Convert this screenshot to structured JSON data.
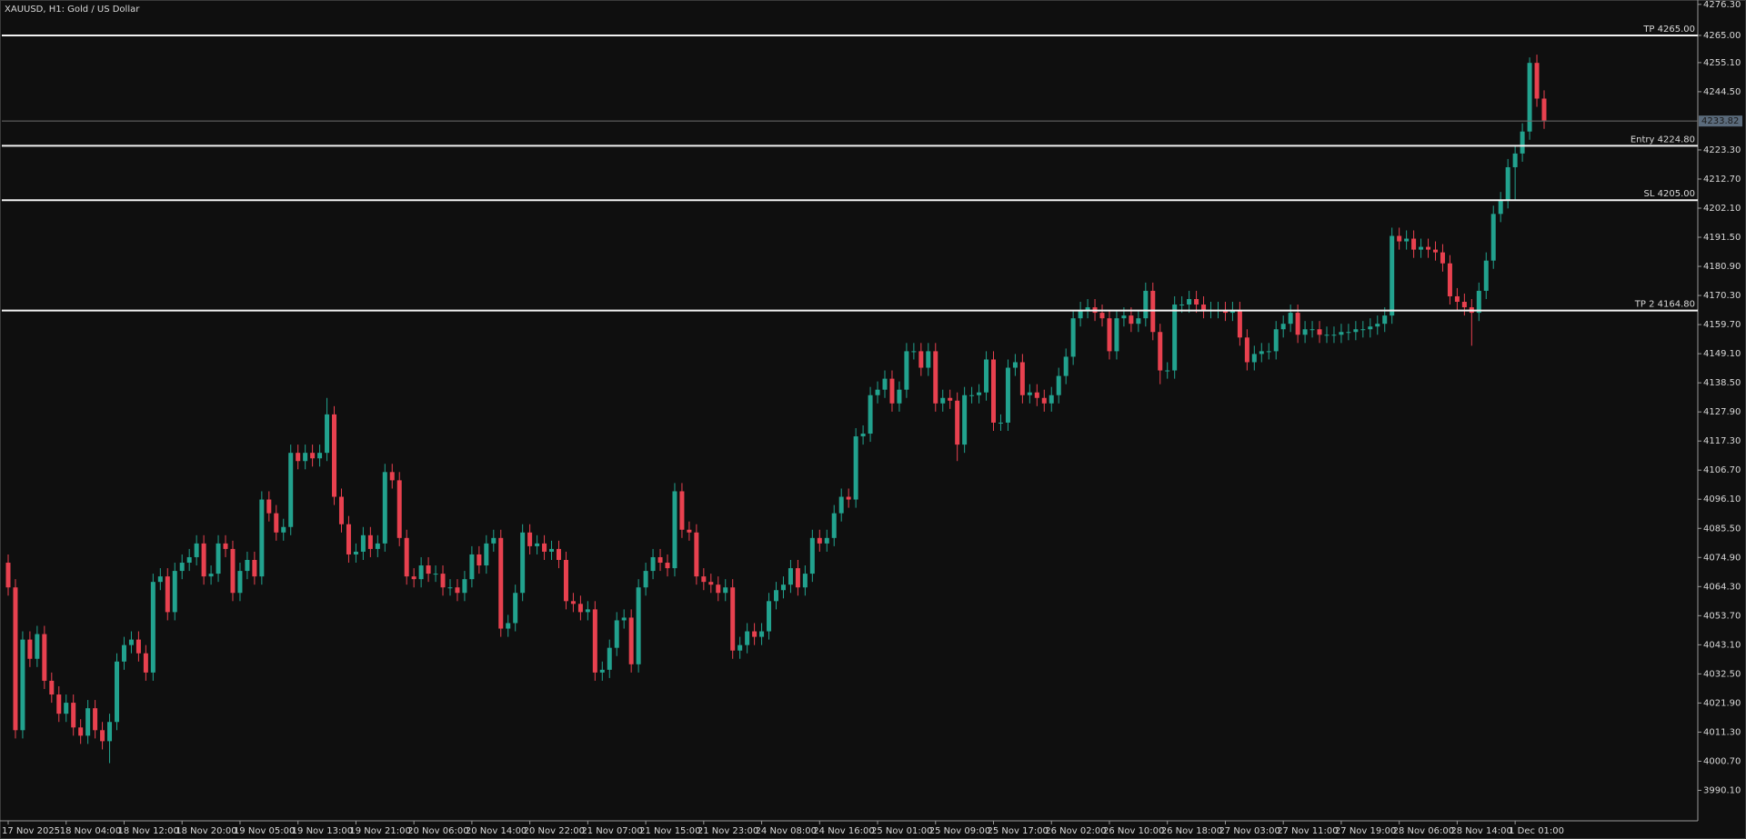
{
  "chart_data": {
    "type": "candlestick",
    "title": "XAUUSD, H1:  Gold / US Dollar",
    "up_color": "#22a28e",
    "down_color": "#e8414f",
    "level_color": "#f2f2f2",
    "current_color": "#6d6d6d",
    "ylim": [
      3979,
      4277.9
    ],
    "yticks": [
      {
        "value": 4276.3,
        "label": "4276.30"
      },
      {
        "value": 4265,
        "label": "4265.00"
      },
      {
        "value": 4255.1,
        "label": "4255.10"
      },
      {
        "value": 4244.5,
        "label": "4244.50"
      },
      {
        "value": 4223.3,
        "label": "4223.30"
      },
      {
        "value": 4212.7,
        "label": "4212.70"
      },
      {
        "value": 4202.1,
        "label": "4202.10"
      },
      {
        "value": 4191.5,
        "label": "4191.50"
      },
      {
        "value": 4180.9,
        "label": "4180.90"
      },
      {
        "value": 4170.3,
        "label": "4170.30"
      },
      {
        "value": 4159.7,
        "label": "4159.70"
      },
      {
        "value": 4149.1,
        "label": "4149.10"
      },
      {
        "value": 4138.5,
        "label": "4138.50"
      },
      {
        "value": 4127.9,
        "label": "4127.90"
      },
      {
        "value": 4117.3,
        "label": "4117.30"
      },
      {
        "value": 4106.7,
        "label": "4106.70"
      },
      {
        "value": 4096.1,
        "label": "4096.10"
      },
      {
        "value": 4085.5,
        "label": "4085.50"
      },
      {
        "value": 4074.9,
        "label": "4074.90"
      },
      {
        "value": 4064.3,
        "label": "4064.30"
      },
      {
        "value": 4053.7,
        "label": "4053.70"
      },
      {
        "value": 4043.1,
        "label": "4043.10"
      },
      {
        "value": 4032.5,
        "label": "4032.50"
      },
      {
        "value": 4021.9,
        "label": "4021.90"
      },
      {
        "value": 4011.3,
        "label": "4011.30"
      },
      {
        "value": 4000.7,
        "label": "4000.70"
      },
      {
        "value": 3990.1,
        "label": "3990.10"
      }
    ],
    "current_price": 4233.82,
    "levels": [
      {
        "label": "TP 4265.00",
        "value": 4265
      },
      {
        "label": "Entry 4224.80",
        "value": 4224.8
      },
      {
        "label": "SL 4205.00",
        "value": 4205
      },
      {
        "label": "TP 2 4164.80",
        "value": 4164.8
      }
    ],
    "categories": [
      "17 Nov 2025",
      null,
      null,
      null,
      null,
      null,
      null,
      null,
      "18 Nov 04:00",
      null,
      null,
      null,
      null,
      null,
      null,
      null,
      "18 Nov 12:00",
      null,
      null,
      null,
      null,
      null,
      null,
      null,
      "18 Nov 20:00",
      null,
      null,
      null,
      null,
      null,
      null,
      null,
      "19 Nov 05:00",
      null,
      null,
      null,
      null,
      null,
      null,
      null,
      "19 Nov 13:00",
      null,
      null,
      null,
      null,
      null,
      null,
      null,
      "19 Nov 21:00",
      null,
      null,
      null,
      null,
      null,
      null,
      null,
      "20 Nov 06:00",
      null,
      null,
      null,
      null,
      null,
      null,
      null,
      "20 Nov 14:00",
      null,
      null,
      null,
      null,
      null,
      null,
      null,
      "20 Nov 22:00",
      null,
      null,
      null,
      null,
      null,
      null,
      null,
      "21 Nov 07:00",
      null,
      null,
      null,
      null,
      null,
      null,
      null,
      "21 Nov 15:00",
      null,
      null,
      null,
      null,
      null,
      null,
      null,
      "21 Nov 23:00",
      null,
      null,
      null,
      null,
      null,
      null,
      null,
      "24 Nov 08:00",
      null,
      null,
      null,
      null,
      null,
      null,
      null,
      "24 Nov 16:00",
      null,
      null,
      null,
      null,
      null,
      null,
      null,
      "25 Nov 01:00",
      null,
      null,
      null,
      null,
      null,
      null,
      null,
      "25 Nov 09:00",
      null,
      null,
      null,
      null,
      null,
      null,
      null,
      "25 Nov 17:00",
      null,
      null,
      null,
      null,
      null,
      null,
      null,
      "26 Nov 02:00",
      null,
      null,
      null,
      null,
      null,
      null,
      null,
      "26 Nov 10:00",
      null,
      null,
      null,
      null,
      null,
      null,
      null,
      "26 Nov 18:00",
      null,
      null,
      null,
      null,
      null,
      null,
      null,
      "27 Nov 03:00",
      null,
      null,
      null,
      null,
      null,
      null,
      null,
      "27 Nov 11:00",
      null,
      null,
      null,
      null,
      null,
      null,
      null,
      "27 Nov 19:00",
      null,
      null,
      null,
      null,
      null,
      null,
      null,
      "28 Nov 06:00",
      null,
      null,
      null,
      null,
      null,
      null,
      null,
      "28 Nov 14:00",
      null,
      null,
      null,
      null,
      null,
      null,
      null,
      "1 Dec 01:00",
      null,
      null,
      null,
      null
    ],
    "open": [
      4073,
      4064,
      4012,
      4045,
      4038,
      4047,
      4030,
      4025,
      4018,
      4022,
      4013,
      4010,
      4020,
      4012,
      4008,
      4015,
      4037,
      4043,
      4045,
      4040,
      4033,
      4066,
      4068,
      4055,
      4070,
      4073,
      4075,
      4080,
      4068,
      4069,
      4080,
      4078,
      4062,
      4070,
      4074,
      4068,
      4096,
      4091,
      4084,
      4086,
      4113,
      4110,
      4113,
      4111,
      4113,
      4127,
      4097,
      4087,
      4076,
      4077,
      4083,
      4078,
      4080,
      4106,
      4103,
      4082,
      4068,
      4067,
      4072,
      4069,
      4069,
      4064,
      4064,
      4062,
      4067,
      4076,
      4072,
      4080,
      4082,
      4049,
      4051,
      4062,
      4084,
      4079,
      4080,
      4077,
      4078,
      4074,
      4059,
      4058,
      4055,
      4056,
      4033,
      4034,
      4042,
      4052,
      4053,
      4036,
      4064,
      4070,
      4075,
      4073,
      4071,
      4099,
      4085,
      4084,
      4068,
      4066,
      4065,
      4062,
      4064,
      4041,
      4043,
      4048,
      4046,
      4048,
      4059,
      4063,
      4065,
      4071,
      4064,
      4069,
      4082,
      4080,
      4082,
      4091,
      4097,
      4096,
      4119,
      4120,
      4134,
      4136,
      4140,
      4131,
      4136,
      4150,
      4150,
      4144,
      4150,
      4131,
      4133,
      4132,
      4116,
      4134,
      4134,
      4135,
      4147,
      4124,
      4124,
      4144,
      4146,
      4134,
      4135,
      4133,
      4131,
      4134,
      4141,
      4148,
      4162,
      4165,
      4166,
      4164,
      4162,
      4150,
      4162,
      4163,
      4160,
      4162,
      4172,
      4157,
      4143,
      4143,
      4167,
      4167,
      4169,
      4167,
      4165,
      4165,
      4165,
      4164,
      4165,
      4155,
      4146,
      4149,
      4150,
      4150,
      4158,
      4160,
      4164,
      4156,
      4158,
      4158,
      4156,
      4156,
      4156,
      4157,
      4157,
      4158,
      4158,
      4159,
      4160,
      4163,
      4192,
      4190,
      4191,
      4187,
      4188,
      4187,
      4186,
      4182,
      4170,
      4168,
      4166,
      4164,
      4172,
      4183,
      4200,
      4205,
      4217,
      4222,
      4230,
      4255,
      4242
    ],
    "high": [
      4076,
      4067,
      4048,
      4048,
      4050,
      4050,
      4033,
      4028,
      4025,
      4025,
      4016,
      4023,
      4023,
      4015,
      4018,
      4040,
      4046,
      4048,
      4048,
      4043,
      4069,
      4071,
      4071,
      4073,
      4076,
      4078,
      4083,
      4083,
      4072,
      4083,
      4083,
      4081,
      4073,
      4077,
      4077,
      4099,
      4099,
      4094,
      4089,
      4116,
      4116,
      4116,
      4116,
      4116,
      4133,
      4130,
      4100,
      4090,
      4080,
      4086,
      4086,
      4083,
      4109,
      4109,
      4106,
      4085,
      4071,
      4075,
      4075,
      4072,
      4072,
      4067,
      4067,
      4070,
      4079,
      4079,
      4083,
      4085,
      4085,
      4054,
      4065,
      4087,
      4087,
      4083,
      4083,
      4081,
      4081,
      4077,
      4062,
      4061,
      4059,
      4059,
      4037,
      4045,
      4055,
      4056,
      4056,
      4067,
      4073,
      4078,
      4078,
      4076,
      4102,
      4102,
      4088,
      4087,
      4071,
      4069,
      4068,
      4067,
      4067,
      4046,
      4051,
      4051,
      4051,
      4062,
      4066,
      4068,
      4074,
      4074,
      4072,
      4085,
      4085,
      4085,
      4094,
      4100,
      4100,
      4122,
      4123,
      4137,
      4139,
      4143,
      4143,
      4139,
      4153,
      4153,
      4153,
      4153,
      4153,
      4136,
      4136,
      4135,
      4137,
      4137,
      4138,
      4150,
      4150,
      4127,
      4147,
      4149,
      4149,
      4138,
      4138,
      4136,
      4137,
      4144,
      4151,
      4165,
      4168,
      4169,
      4169,
      4167,
      4165,
      4165,
      4166,
      4166,
      4165,
      4175,
      4175,
      4160,
      4146,
      4170,
      4170,
      4172,
      4172,
      4170,
      4168,
      4168,
      4168,
      4168,
      4168,
      4158,
      4152,
      4153,
      4153,
      4161,
      4163,
      4167,
      4167,
      4161,
      4161,
      4161,
      4159,
      4159,
      4160,
      4160,
      4161,
      4161,
      4162,
      4163,
      4166,
      4195,
      4195,
      4194,
      4194,
      4191,
      4191,
      4190,
      4189,
      4185,
      4173,
      4171,
      4169,
      4175,
      4186,
      4203,
      4208,
      4220,
      4225,
      4233,
      4257,
      4258,
      4245
    ],
    "low": [
      4061,
      4009,
      4009,
      4035,
      4035,
      4027,
      4022,
      4015,
      4015,
      4010,
      4007,
      4007,
      4009,
      4005,
      4000,
      4012,
      4034,
      4040,
      4037,
      4030,
      4030,
      4063,
      4052,
      4052,
      4067,
      4070,
      4072,
      4065,
      4065,
      4066,
      4075,
      4059,
      4059,
      4067,
      4065,
      4065,
      4088,
      4081,
      4081,
      4083,
      4107,
      4107,
      4108,
      4108,
      4110,
      4094,
      4084,
      4073,
      4073,
      4074,
      4075,
      4075,
      4077,
      4100,
      4079,
      4065,
      4064,
      4064,
      4066,
      4066,
      4061,
      4061,
      4059,
      4059,
      4064,
      4069,
      4069,
      4077,
      4046,
      4046,
      4048,
      4059,
      4076,
      4076,
      4074,
      4074,
      4071,
      4056,
      4055,
      4052,
      4052,
      4030,
      4030,
      4031,
      4039,
      4049,
      4033,
      4033,
      4061,
      4067,
      4070,
      4068,
      4068,
      4082,
      4081,
      4065,
      4063,
      4062,
      4059,
      4059,
      4038,
      4038,
      4040,
      4043,
      4043,
      4045,
      4056,
      4060,
      4062,
      4061,
      4061,
      4066,
      4077,
      4077,
      4079,
      4088,
      4093,
      4093,
      4116,
      4117,
      4131,
      4133,
      4128,
      4128,
      4133,
      4147,
      4141,
      4141,
      4128,
      4128,
      4129,
      4110,
      4113,
      4131,
      4131,
      4132,
      4121,
      4121,
      4121,
      4141,
      4131,
      4131,
      4130,
      4128,
      4128,
      4131,
      4138,
      4145,
      4159,
      4162,
      4161,
      4159,
      4147,
      4147,
      4159,
      4157,
      4157,
      4159,
      4154,
      4138,
      4140,
      4140,
      4164,
      4164,
      4164,
      4162,
      4162,
      4162,
      4161,
      4161,
      4152,
      4143,
      4143,
      4146,
      4147,
      4147,
      4155,
      4157,
      4153,
      4153,
      4155,
      4153,
      4153,
      4153,
      4153,
      4154,
      4154,
      4155,
      4155,
      4156,
      4157,
      4160,
      4187,
      4187,
      4184,
      4184,
      4184,
      4183,
      4179,
      4167,
      4165,
      4163,
      4152,
      4161,
      4169,
      4180,
      4197,
      4202,
      4205,
      4219,
      4227,
      4239,
      4231
    ],
    "close": [
      4064,
      4012,
      4045,
      4038,
      4047,
      4030,
      4025,
      4018,
      4022,
      4013,
      4010,
      4020,
      4012,
      4008,
      4015,
      4037,
      4043,
      4045,
      4040,
      4033,
      4066,
      4068,
      4055,
      4070,
      4073,
      4075,
      4080,
      4068,
      4069,
      4080,
      4078,
      4062,
      4070,
      4074,
      4068,
      4096,
      4091,
      4084,
      4086,
      4113,
      4110,
      4113,
      4111,
      4113,
      4127,
      4097,
      4087,
      4076,
      4077,
      4083,
      4078,
      4080,
      4106,
      4103,
      4082,
      4068,
      4067,
      4072,
      4069,
      4069,
      4064,
      4064,
      4062,
      4067,
      4076,
      4072,
      4080,
      4082,
      4049,
      4051,
      4062,
      4084,
      4079,
      4080,
      4077,
      4078,
      4074,
      4059,
      4058,
      4055,
      4056,
      4033,
      4034,
      4042,
      4052,
      4053,
      4036,
      4064,
      4070,
      4075,
      4073,
      4071,
      4099,
      4085,
      4084,
      4068,
      4066,
      4065,
      4062,
      4064,
      4041,
      4043,
      4048,
      4046,
      4048,
      4059,
      4063,
      4065,
      4071,
      4064,
      4069,
      4082,
      4080,
      4082,
      4091,
      4097,
      4096,
      4119,
      4120,
      4134,
      4136,
      4140,
      4131,
      4136,
      4150,
      4150,
      4144,
      4150,
      4131,
      4133,
      4132,
      4116,
      4134,
      4134,
      4135,
      4147,
      4124,
      4124,
      4144,
      4146,
      4134,
      4135,
      4133,
      4131,
      4134,
      4141,
      4148,
      4162,
      4165,
      4166,
      4164,
      4162,
      4150,
      4162,
      4163,
      4160,
      4162,
      4172,
      4157,
      4143,
      4143,
      4167,
      4167,
      4169,
      4167,
      4165,
      4165,
      4165,
      4164,
      4165,
      4155,
      4146,
      4149,
      4150,
      4150,
      4158,
      4160,
      4164,
      4156,
      4158,
      4158,
      4156,
      4156,
      4156,
      4157,
      4157,
      4158,
      4158,
      4159,
      4160,
      4163,
      4192,
      4190,
      4191,
      4187,
      4188,
      4187,
      4186,
      4182,
      4170,
      4168,
      4166,
      4164,
      4172,
      4183,
      4200,
      4205,
      4217,
      4222,
      4230,
      4255,
      4242,
      4234
    ]
  }
}
